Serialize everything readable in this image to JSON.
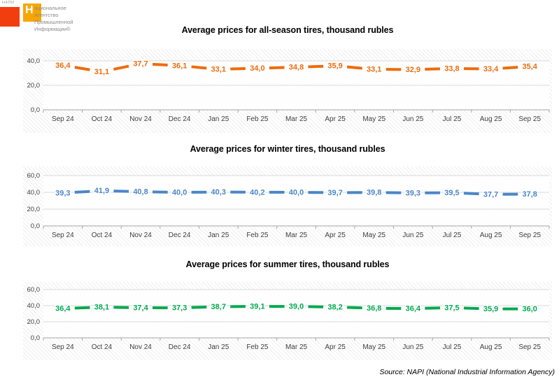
{
  "logo": {
    "mini_text": "НАПИ",
    "initial": "Н",
    "line1_rest": "ациональное",
    "line2": "Агентство",
    "line3": "Промышленной",
    "line4": "Информации®",
    "red_color": "#F23E0E",
    "orange_color": "#F7A600"
  },
  "source_note": "Source: NAPI (National Industrial Information Agency)",
  "chart_data": [
    {
      "type": "line",
      "title": "Average prices for all-season tires, thousand rubles",
      "categories": [
        "Sep 24",
        "Oct 24",
        "Nov 24",
        "Dec 24",
        "Jan 25",
        "Feb 25",
        "Mar 25",
        "Apr 25",
        "May 25",
        "Jun 25",
        "Jul 25",
        "Aug 25",
        "Sep 25"
      ],
      "values": [
        36.4,
        31.1,
        37.7,
        36.1,
        33.1,
        34.0,
        34.8,
        35.9,
        33.1,
        32.9,
        33.8,
        33.4,
        35.4
      ],
      "ylim": [
        0,
        40
      ],
      "yticks": [
        0,
        20,
        40
      ],
      "ytick_labels": [
        "0,0",
        "20,0",
        "40,0"
      ],
      "color": "#ED6C0C",
      "line_style": "dashed",
      "grid": true,
      "legend": "none",
      "decimal_format": "comma"
    },
    {
      "type": "line",
      "title": "Average prices for winter tires, thousand rubles",
      "categories": [
        "Sep 24",
        "Oct 24",
        "Nov 24",
        "Dec 24",
        "Jan 25",
        "Feb 25",
        "Mar 25",
        "Apr 25",
        "May 25",
        "Jun 25",
        "Jul 25",
        "Aug 25",
        "Sep 25"
      ],
      "values": [
        39.3,
        41.9,
        40.8,
        40.0,
        40.3,
        40.2,
        40.0,
        39.7,
        39.8,
        39.3,
        39.5,
        37.7,
        37.8
      ],
      "ylim": [
        0,
        60
      ],
      "yticks": [
        0,
        20,
        40,
        60
      ],
      "ytick_labels": [
        "0,0",
        "20,0",
        "40,0",
        "60,0"
      ],
      "color": "#4A86C8",
      "line_style": "dashed",
      "grid": true,
      "legend": "none",
      "decimal_format": "comma"
    },
    {
      "type": "line",
      "title": "Average prices for summer tires, thousand rubles",
      "categories": [
        "Sep 24",
        "Oct 24",
        "Nov 24",
        "Dec 24",
        "Jan 25",
        "Feb 25",
        "Mar 25",
        "Apr 25",
        "May 25",
        "Jun 25",
        "Jul 25",
        "Aug 25",
        "Sep 25"
      ],
      "values": [
        36.4,
        38.1,
        37.4,
        37.3,
        38.7,
        39.1,
        39.0,
        38.2,
        36.8,
        36.4,
        37.5,
        35.9,
        36.0
      ],
      "ylim": [
        0,
        60
      ],
      "yticks": [
        0,
        20,
        40,
        60
      ],
      "ytick_labels": [
        "0,0",
        "20,0",
        "40,0",
        "60,0"
      ],
      "color": "#00A94F",
      "line_style": "dashed",
      "grid": true,
      "legend": "none",
      "decimal_format": "comma"
    }
  ]
}
